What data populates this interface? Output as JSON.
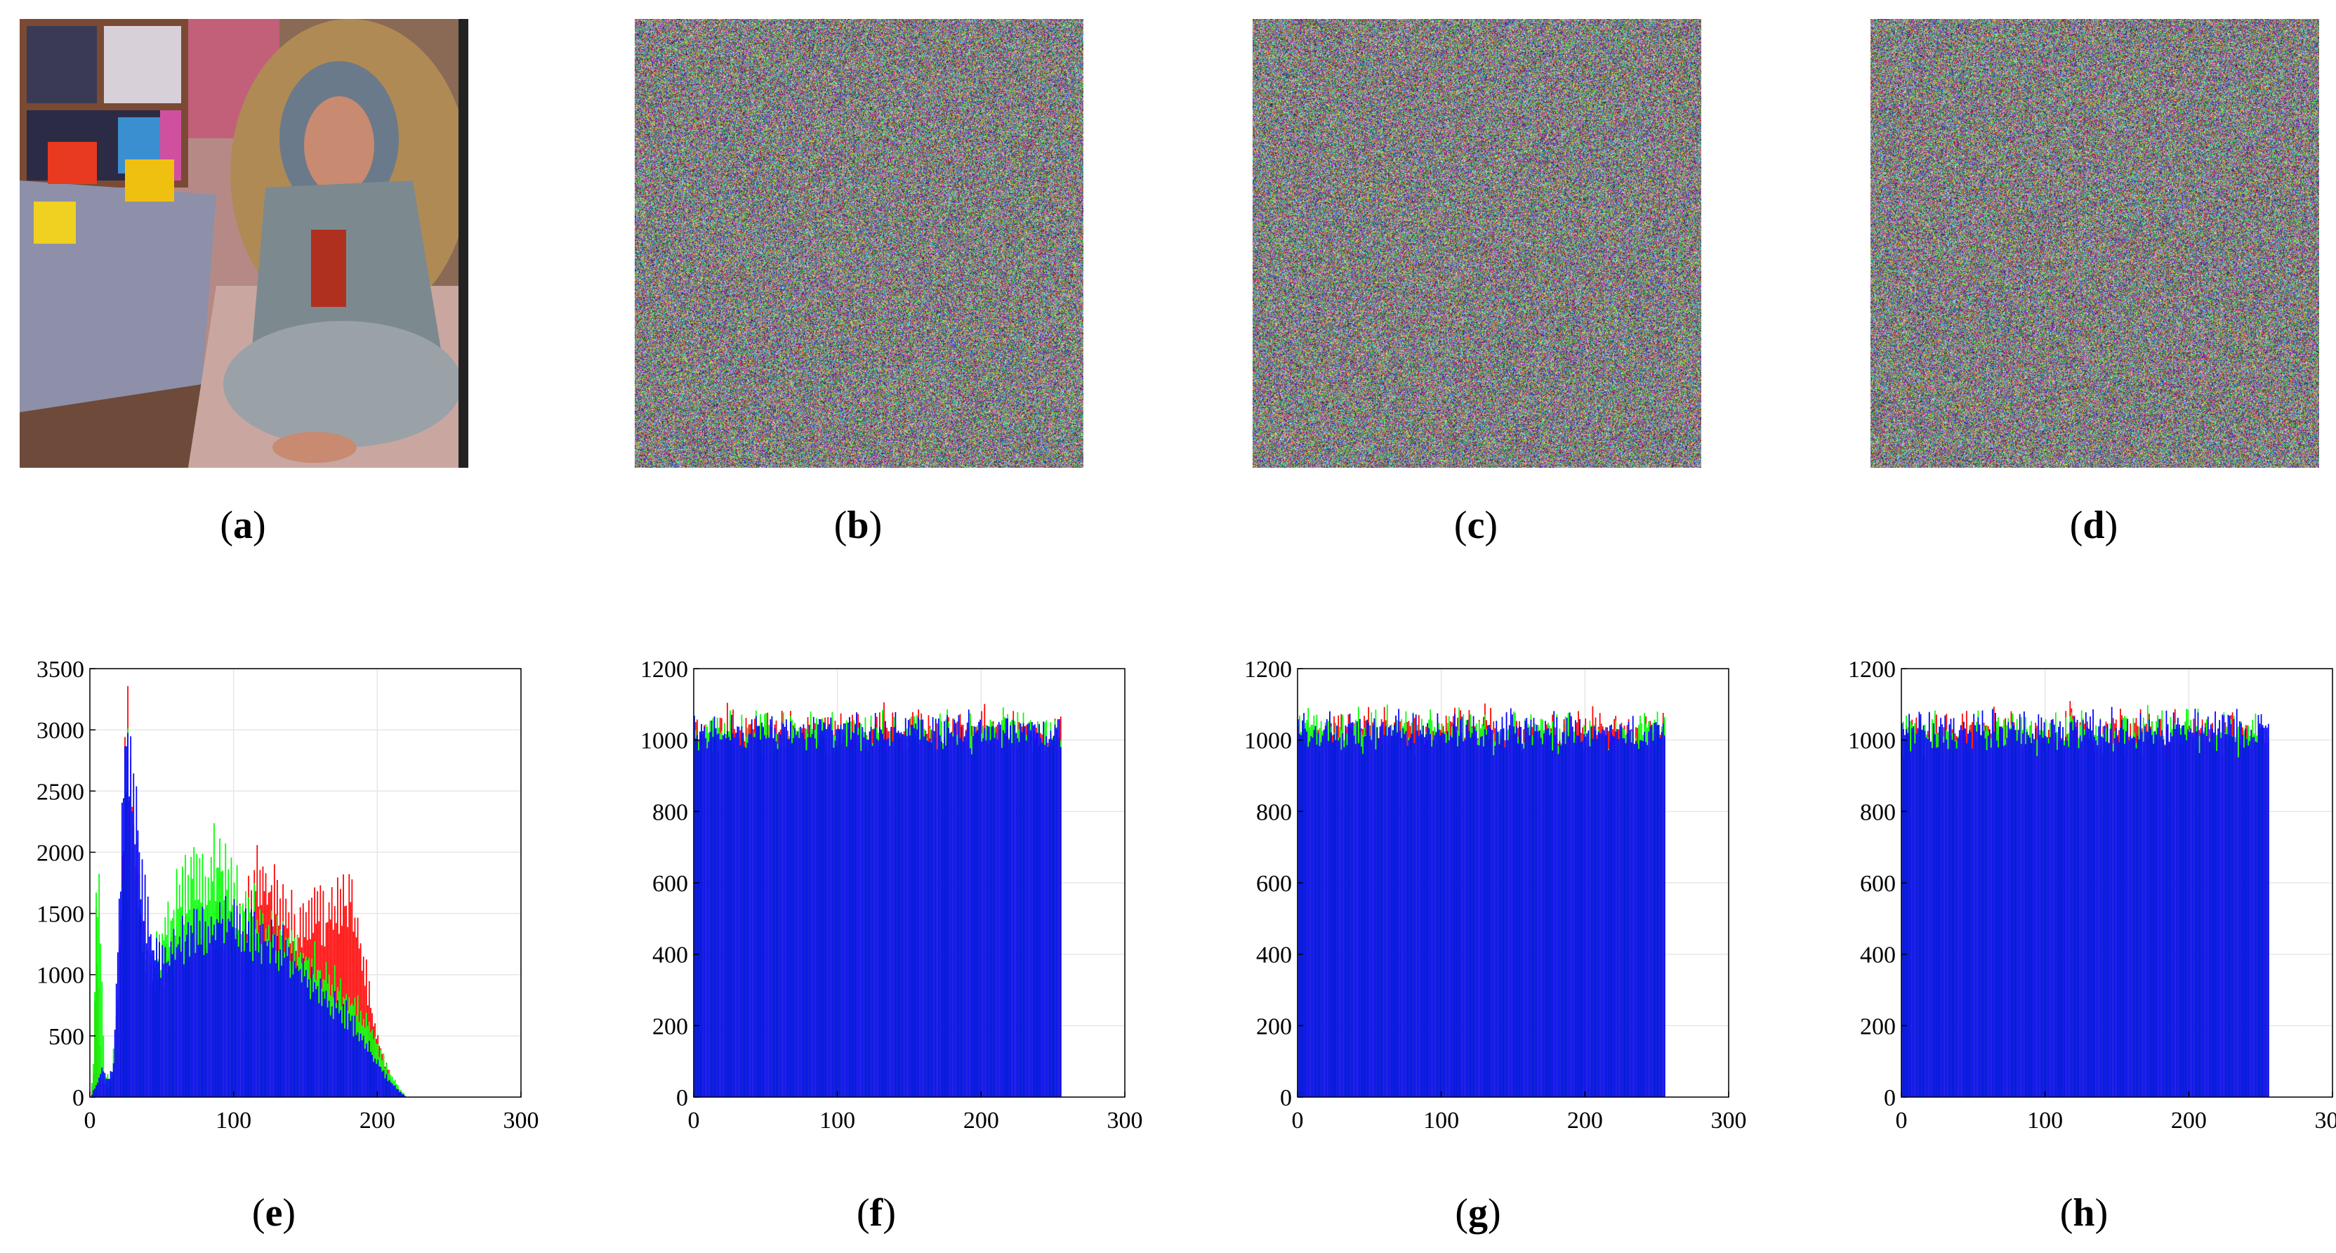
{
  "captions": {
    "a": "a",
    "b": "b",
    "c": "c",
    "d": "d",
    "e": "e",
    "f": "f",
    "g": "g",
    "h": "h"
  },
  "images": [
    {
      "id": "a",
      "kind": "photograph of seated woman with headscarf beside a table with toys and a bookshelf"
    },
    {
      "id": "b",
      "kind": "encrypted noise image"
    },
    {
      "id": "c",
      "kind": "encrypted noise image"
    },
    {
      "id": "d",
      "kind": "encrypted noise image"
    }
  ],
  "colors": {
    "red": "#ff0000",
    "green": "#00ff00",
    "blue": "#0000ff",
    "grid": "#e6e6e6"
  },
  "chart_data": [
    {
      "id": "e",
      "type": "bar",
      "description": "RGB histogram of the plain image",
      "xlim": [
        0,
        300
      ],
      "ylim": [
        0,
        3500
      ],
      "xticks": [
        0,
        100,
        200,
        300
      ],
      "yticks": [
        0,
        500,
        1000,
        1500,
        2000,
        2500,
        3000,
        3500
      ],
      "grid": true,
      "series": [
        {
          "color": "red",
          "anchors": [
            [
              0,
              0
            ],
            [
              2,
              200
            ],
            [
              4,
              1700
            ],
            [
              6,
              900
            ],
            [
              8,
              150
            ],
            [
              12,
              80
            ],
            [
              16,
              200
            ],
            [
              20,
              1200
            ],
            [
              24,
              2800
            ],
            [
              26,
              3100
            ],
            [
              28,
              2800
            ],
            [
              32,
              2000
            ],
            [
              36,
              1500
            ],
            [
              40,
              1200
            ],
            [
              44,
              1100
            ],
            [
              48,
              1100
            ],
            [
              52,
              1150
            ],
            [
              56,
              1200
            ],
            [
              60,
              1300
            ],
            [
              70,
              1400
            ],
            [
              80,
              1450
            ],
            [
              90,
              1500
            ],
            [
              100,
              1550
            ],
            [
              110,
              1650
            ],
            [
              115,
              1900
            ],
            [
              120,
              1950
            ],
            [
              125,
              1800
            ],
            [
              130,
              1700
            ],
            [
              135,
              1600
            ],
            [
              140,
              1550
            ],
            [
              145,
              1400
            ],
            [
              150,
              1500
            ],
            [
              155,
              1550
            ],
            [
              160,
              1600
            ],
            [
              165,
              1550
            ],
            [
              170,
              1650
            ],
            [
              175,
              1700
            ],
            [
              180,
              1750
            ],
            [
              185,
              1550
            ],
            [
              190,
              1200
            ],
            [
              195,
              800
            ],
            [
              200,
              500
            ],
            [
              205,
              300
            ],
            [
              210,
              150
            ],
            [
              215,
              50
            ],
            [
              220,
              0
            ]
          ]
        },
        {
          "color": "green",
          "anchors": [
            [
              0,
              0
            ],
            [
              2,
              300
            ],
            [
              4,
              1600
            ],
            [
              6,
              2000
            ],
            [
              8,
              900
            ],
            [
              10,
              200
            ],
            [
              14,
              150
            ],
            [
              18,
              600
            ],
            [
              22,
              1800
            ],
            [
              25,
              2900
            ],
            [
              28,
              2700
            ],
            [
              32,
              1900
            ],
            [
              36,
              1400
            ],
            [
              40,
              1200
            ],
            [
              44,
              1200
            ],
            [
              48,
              1300
            ],
            [
              52,
              1450
            ],
            [
              56,
              1600
            ],
            [
              60,
              1700
            ],
            [
              65,
              1800
            ],
            [
              70,
              1950
            ],
            [
              75,
              2000
            ],
            [
              80,
              1900
            ],
            [
              85,
              2050
            ],
            [
              90,
              2000
            ],
            [
              95,
              1900
            ],
            [
              100,
              1800
            ],
            [
              105,
              1700
            ],
            [
              110,
              1650
            ],
            [
              115,
              1600
            ],
            [
              120,
              1550
            ],
            [
              125,
              1500
            ],
            [
              130,
              1450
            ],
            [
              135,
              1400
            ],
            [
              140,
              1350
            ],
            [
              145,
              1300
            ],
            [
              150,
              1250
            ],
            [
              155,
              1200
            ],
            [
              160,
              1100
            ],
            [
              165,
              1000
            ],
            [
              170,
              1000
            ],
            [
              175,
              900
            ],
            [
              180,
              850
            ],
            [
              185,
              800
            ],
            [
              190,
              700
            ],
            [
              195,
              600
            ],
            [
              200,
              450
            ],
            [
              205,
              300
            ],
            [
              210,
              180
            ],
            [
              215,
              80
            ],
            [
              220,
              0
            ]
          ]
        },
        {
          "color": "blue",
          "anchors": [
            [
              0,
              0
            ],
            [
              4,
              100
            ],
            [
              8,
              250
            ],
            [
              12,
              150
            ],
            [
              16,
              300
            ],
            [
              20,
              1600
            ],
            [
              24,
              3050
            ],
            [
              26,
              3250
            ],
            [
              28,
              3100
            ],
            [
              30,
              2800
            ],
            [
              34,
              2200
            ],
            [
              38,
              1700
            ],
            [
              42,
              1400
            ],
            [
              46,
              1200
            ],
            [
              50,
              1150
            ],
            [
              55,
              1250
            ],
            [
              60,
              1350
            ],
            [
              65,
              1400
            ],
            [
              70,
              1450
            ],
            [
              75,
              1450
            ],
            [
              80,
              1500
            ],
            [
              85,
              1500
            ],
            [
              90,
              1550
            ],
            [
              95,
              1550
            ],
            [
              100,
              1520
            ],
            [
              105,
              1480
            ],
            [
              110,
              1450
            ],
            [
              115,
              1430
            ],
            [
              120,
              1400
            ],
            [
              125,
              1350
            ],
            [
              130,
              1300
            ],
            [
              135,
              1280
            ],
            [
              140,
              1250
            ],
            [
              145,
              1150
            ],
            [
              150,
              1100
            ],
            [
              155,
              1000
            ],
            [
              160,
              950
            ],
            [
              165,
              850
            ],
            [
              170,
              800
            ],
            [
              175,
              750
            ],
            [
              180,
              700
            ],
            [
              185,
              600
            ],
            [
              190,
              500
            ],
            [
              195,
              400
            ],
            [
              200,
              300
            ],
            [
              205,
              200
            ],
            [
              210,
              120
            ],
            [
              215,
              50
            ],
            [
              220,
              0
            ]
          ]
        }
      ]
    },
    {
      "id": "f",
      "type": "bar",
      "description": "RGB histogram of cipher image (b)",
      "xlim": [
        0,
        300
      ],
      "ylim": [
        0,
        1200
      ],
      "xticks": [
        0,
        100,
        200,
        300
      ],
      "yticks": [
        0,
        200,
        400,
        600,
        800,
        1000,
        1200
      ],
      "grid": true,
      "bins": 256,
      "mean": 1024,
      "spread": 45,
      "series": [
        {
          "color": "red"
        },
        {
          "color": "green"
        },
        {
          "color": "blue"
        }
      ]
    },
    {
      "id": "g",
      "type": "bar",
      "description": "RGB histogram of cipher image (c)",
      "xlim": [
        0,
        300
      ],
      "ylim": [
        0,
        1200
      ],
      "xticks": [
        0,
        100,
        200,
        300
      ],
      "yticks": [
        0,
        200,
        400,
        600,
        800,
        1000,
        1200
      ],
      "grid": true,
      "bins": 256,
      "mean": 1024,
      "spread": 45,
      "series": [
        {
          "color": "red"
        },
        {
          "color": "green"
        },
        {
          "color": "blue"
        }
      ]
    },
    {
      "id": "h",
      "type": "bar",
      "description": "RGB histogram of cipher image (d)",
      "xlim": [
        0,
        300
      ],
      "ylim": [
        0,
        1200
      ],
      "xticks": [
        0,
        100,
        200,
        300
      ],
      "yticks": [
        0,
        200,
        400,
        600,
        800,
        1000,
        1200
      ],
      "grid": true,
      "bins": 256,
      "mean": 1024,
      "spread": 45,
      "series": [
        {
          "color": "red"
        },
        {
          "color": "green"
        },
        {
          "color": "blue"
        }
      ]
    }
  ]
}
